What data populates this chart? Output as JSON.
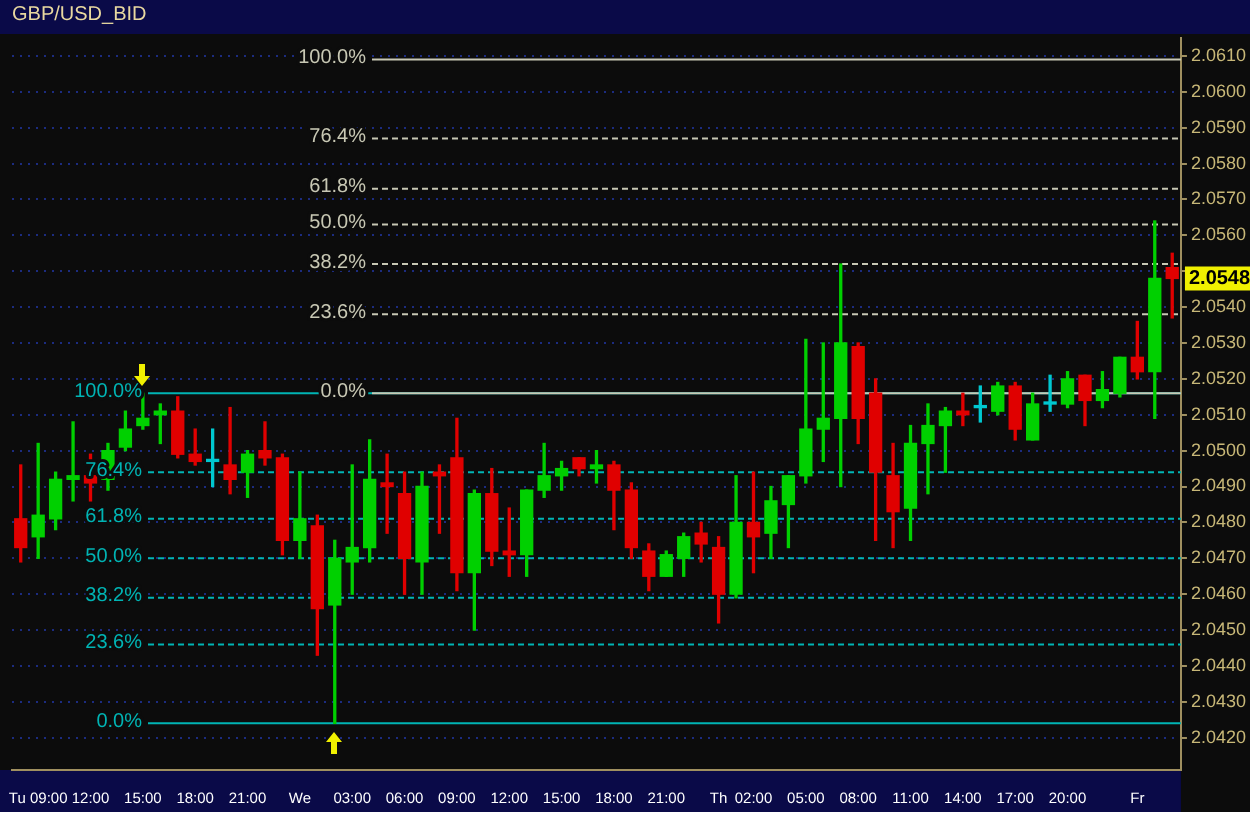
{
  "chart_data": {
    "type": "candlestick",
    "title": "GBP/USD_BID",
    "categories": [
      null,
      "Tu 09:00",
      null,
      null,
      "12:00",
      null,
      null,
      "15:00",
      null,
      null,
      "18:00",
      null,
      null,
      "21:00",
      null,
      null,
      "We",
      null,
      null,
      "03:00",
      null,
      null,
      "06:00",
      null,
      null,
      "09:00",
      null,
      null,
      "12:00",
      null,
      null,
      "15:00",
      null,
      null,
      "18:00",
      null,
      null,
      "21:00",
      null,
      null,
      "Th",
      null,
      "02:00",
      null,
      null,
      "05:00",
      null,
      null,
      "08:00",
      null,
      null,
      "11:00",
      null,
      null,
      "14:00",
      null,
      null,
      "17:00",
      null,
      null,
      "20:00",
      null,
      null,
      null,
      "Fr",
      null,
      null
    ],
    "ohlc": [
      [
        2.0481,
        2.0496,
        2.0469,
        2.0473
      ],
      [
        2.0476,
        2.0502,
        2.047,
        2.0482
      ],
      [
        2.0481,
        2.0494,
        2.0478,
        2.0492
      ],
      [
        2.0492,
        2.0508,
        2.0486,
        2.0493
      ],
      [
        2.0493,
        2.0499,
        2.0486,
        2.0491
      ],
      [
        2.0492,
        2.0502,
        2.0489,
        2.05
      ],
      [
        2.0501,
        2.0511,
        2.05,
        2.0506
      ],
      [
        2.0507,
        2.0516,
        2.0506,
        2.0509
      ],
      [
        2.051,
        2.0513,
        2.0502,
        2.0511
      ],
      [
        2.0511,
        2.0515,
        2.0498,
        2.0499
      ],
      [
        2.0499,
        2.0506,
        2.0496,
        2.0497
      ],
      [
        2.0497,
        2.0506,
        2.049,
        2.0497
      ],
      [
        2.0496,
        2.0512,
        2.0488,
        2.0492
      ],
      [
        2.0494,
        2.05,
        2.0487,
        2.0499
      ],
      [
        2.05,
        2.0508,
        2.0496,
        2.0498
      ],
      [
        2.0498,
        2.0499,
        2.0471,
        2.0475
      ],
      [
        2.0475,
        2.0494,
        2.047,
        2.0481
      ],
      [
        2.0479,
        2.0482,
        2.0443,
        2.0456
      ],
      [
        2.0457,
        2.0475,
        2.0424,
        2.047
      ],
      [
        2.0469,
        2.0496,
        2.046,
        2.0473
      ],
      [
        2.0473,
        2.0503,
        2.0469,
        2.0492
      ],
      [
        2.0491,
        2.0499,
        2.0477,
        2.049
      ],
      [
        2.0488,
        2.0494,
        2.046,
        2.047
      ],
      [
        2.0469,
        2.0494,
        2.046,
        2.049
      ],
      [
        2.0494,
        2.0496,
        2.0477,
        2.0493
      ],
      [
        2.0498,
        2.0509,
        2.0461,
        2.0466
      ],
      [
        2.0466,
        2.0489,
        2.045,
        2.0488
      ],
      [
        2.0488,
        2.0495,
        2.0468,
        2.0472
      ],
      [
        2.0472,
        2.0484,
        2.0465,
        2.0471
      ],
      [
        2.0471,
        2.0489,
        2.0465,
        2.0489
      ],
      [
        2.0489,
        2.0502,
        2.0487,
        2.0493
      ],
      [
        2.0493,
        2.0497,
        2.0489,
        2.0495
      ],
      [
        2.0498,
        2.0498,
        2.0493,
        2.0495
      ],
      [
        2.0495,
        2.05,
        2.0491,
        2.0496
      ],
      [
        2.0496,
        2.0497,
        2.0478,
        2.0489
      ],
      [
        2.0489,
        2.0491,
        2.047,
        2.0473
      ],
      [
        2.0472,
        2.0474,
        2.0461,
        2.0465
      ],
      [
        2.0465,
        2.0472,
        2.0465,
        2.0471
      ],
      [
        2.047,
        2.0477,
        2.0465,
        2.0476
      ],
      [
        2.0477,
        2.048,
        2.0469,
        2.0474
      ],
      [
        2.0473,
        2.0476,
        2.0452,
        2.046
      ],
      [
        2.046,
        2.0493,
        2.0459,
        2.048
      ],
      [
        2.048,
        2.0494,
        2.0466,
        2.0476
      ],
      [
        2.0477,
        2.049,
        2.047,
        2.0486
      ],
      [
        2.0485,
        2.0493,
        2.0473,
        2.0493
      ],
      [
        2.0493,
        2.0531,
        2.0491,
        2.0506
      ],
      [
        2.0506,
        2.053,
        2.0497,
        2.0509
      ],
      [
        2.0509,
        2.0552,
        2.049,
        2.053
      ],
      [
        2.0529,
        2.053,
        2.0502,
        2.0509
      ],
      [
        2.0516,
        2.052,
        2.0475,
        2.0494
      ],
      [
        2.0493,
        2.0502,
        2.0473,
        2.0483
      ],
      [
        2.0484,
        2.0507,
        2.0475,
        2.0502
      ],
      [
        2.0502,
        2.0513,
        2.0488,
        2.0507
      ],
      [
        2.0507,
        2.0512,
        2.0494,
        2.0511
      ],
      [
        2.0511,
        2.0516,
        2.0507,
        2.051
      ],
      [
        2.0512,
        2.0518,
        2.0508,
        2.0512
      ],
      [
        2.0511,
        2.0519,
        2.051,
        2.0518
      ],
      [
        2.0518,
        2.0519,
        2.0503,
        2.0506
      ],
      [
        2.0503,
        2.0516,
        2.0503,
        2.0513
      ],
      [
        2.0513,
        2.0521,
        2.0511,
        2.0513
      ],
      [
        2.0513,
        2.0522,
        2.0512,
        2.052
      ],
      [
        2.0521,
        2.0521,
        2.0507,
        2.0514
      ],
      [
        2.0514,
        2.0522,
        2.0512,
        2.0517
      ],
      [
        2.0516,
        2.0526,
        2.0515,
        2.0526
      ],
      [
        2.0526,
        2.0536,
        2.052,
        2.0522
      ],
      [
        2.0522,
        2.0564,
        2.0509,
        2.0548
      ],
      [
        2.0551,
        2.0555,
        2.0537,
        2.0548
      ]
    ],
    "colors": [
      "#e00000",
      "#00d000",
      "#00d000",
      "#00d000",
      "#e00000",
      "#00d000",
      "#00d000",
      "#00d000",
      "#00d000",
      "#e00000",
      "#e00000",
      "#00c8d0",
      "#e00000",
      "#00d000",
      "#e00000",
      "#e00000",
      "#00d000",
      "#e00000",
      "#00d000",
      "#00d000",
      "#00d000",
      "#e00000",
      "#e00000",
      "#00d000",
      "#e00000",
      "#e00000",
      "#00d000",
      "#e00000",
      "#e00000",
      "#00d000",
      "#00d000",
      "#00d000",
      "#e00000",
      "#00d000",
      "#e00000",
      "#e00000",
      "#e00000",
      "#00d000",
      "#00d000",
      "#e00000",
      "#e00000",
      "#00d000",
      "#e00000",
      "#00d000",
      "#00d000",
      "#00d000",
      "#00d000",
      "#00d000",
      "#e00000",
      "#e00000",
      "#e00000",
      "#00d000",
      "#00d000",
      "#00d000",
      "#e00000",
      "#00c8d0",
      "#00d000",
      "#e00000",
      "#00d000",
      "#00c8d0",
      "#00d000",
      "#e00000",
      "#00d000",
      "#00d000",
      "#e00000",
      "#00d000",
      "#e00000"
    ],
    "ylim": [
      2.0411,
      2.0615
    ],
    "yticks": [
      {
        "value": 2.042,
        "label": "2.0420"
      },
      {
        "value": 2.043,
        "label": "2.0430"
      },
      {
        "value": 2.044,
        "label": "2.0440"
      },
      {
        "value": 2.045,
        "label": "2.0450"
      },
      {
        "value": 2.046,
        "label": "2.0460"
      },
      {
        "value": 2.047,
        "label": "2.0470"
      },
      {
        "value": 2.048,
        "label": "2.0480"
      },
      {
        "value": 2.049,
        "label": "2.0490"
      },
      {
        "value": 2.05,
        "label": "2.0500"
      },
      {
        "value": 2.051,
        "label": "2.0510"
      },
      {
        "value": 2.052,
        "label": "2.0520"
      },
      {
        "value": 2.053,
        "label": "2.0530"
      },
      {
        "value": 2.054,
        "label": "2.0540"
      },
      {
        "value": 2.055,
        "label": null
      },
      {
        "value": 2.056,
        "label": "2.0560"
      },
      {
        "value": 2.057,
        "label": "2.0570"
      },
      {
        "value": 2.058,
        "label": "2.0580"
      },
      {
        "value": 2.059,
        "label": "2.0590"
      },
      {
        "value": 2.06,
        "label": "2.0600"
      },
      {
        "value": 2.061,
        "label": "2.0610"
      }
    ],
    "grid": "y",
    "ref_lines": [
      {
        "axis": "y",
        "value": 2.0609,
        "color": "#c8c8b4",
        "line_style": "solid"
      },
      {
        "axis": "y",
        "value": 2.0587,
        "color": "#c8c8b4",
        "line_style": "dashed"
      },
      {
        "axis": "y",
        "value": 2.0573,
        "color": "#c8c8b4",
        "line_style": "dashed"
      },
      {
        "axis": "y",
        "value": 2.0563,
        "color": "#c8c8b4",
        "line_style": "dashed"
      },
      {
        "axis": "y",
        "value": 2.0552,
        "color": "#c8c8b4",
        "line_style": "dashed"
      },
      {
        "axis": "y",
        "value": 2.0538,
        "color": "#c8c8b4",
        "line_style": "dashed"
      },
      {
        "axis": "y",
        "value": 2.0516,
        "color": "#c8c8b4",
        "line_style": "solid"
      },
      {
        "axis": "y",
        "value": 2.0516,
        "color": "#00b4b4",
        "line_style": "solid"
      },
      {
        "axis": "y",
        "value": 2.0494,
        "color": "#00b4b4",
        "line_style": "dashed"
      },
      {
        "axis": "y",
        "value": 2.0481,
        "color": "#00b4b4",
        "line_style": "dashed"
      },
      {
        "axis": "y",
        "value": 2.047,
        "color": "#00b4b4",
        "line_style": "dashed"
      },
      {
        "axis": "y",
        "value": 2.0459,
        "color": "#00b4b4",
        "line_style": "dashed"
      },
      {
        "axis": "y",
        "value": 2.0446,
        "color": "#00b4b4",
        "line_style": "dashed"
      },
      {
        "axis": "y",
        "value": 2.0424,
        "color": "#00b4b4",
        "line_style": "solid"
      }
    ],
    "annotations": [
      "100.0%",
      "76.4%",
      "61.8%",
      "50.0%",
      "38.2%",
      "23.6%",
      "0.0%",
      "100.0%",
      "76.4%",
      "61.8%",
      "50.0%",
      "38.2%",
      "23.6%",
      "0.0%",
      {
        "text": "2.0548",
        "y": 2.0548
      }
    ]
  }
}
